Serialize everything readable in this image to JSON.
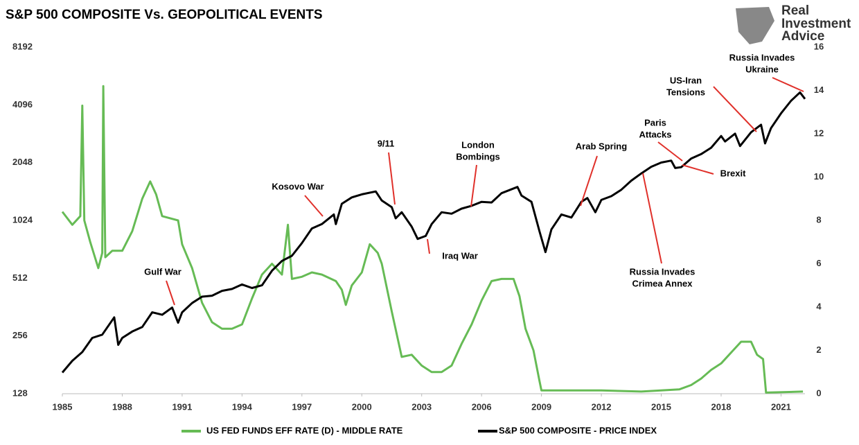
{
  "chart_data": {
    "type": "line",
    "title": "S&P 500 COMPOSITE Vs. GEOPOLITICAL EVENTS",
    "logo": [
      "Real",
      "Investment",
      "Advice"
    ],
    "xlim": [
      1985,
      2022.2
    ],
    "xticks": [
      1985,
      1988,
      1991,
      1994,
      1997,
      2000,
      2003,
      2006,
      2009,
      2012,
      2015,
      2018,
      2021
    ],
    "ylim": [
      128,
      8192
    ],
    "yticks": [
      128,
      256,
      512,
      1024,
      2048,
      4096,
      8192
    ],
    "yscale": "log",
    "y2lim": [
      0,
      16
    ],
    "y2ticks": [
      0,
      2,
      4,
      6,
      8,
      10,
      12,
      14,
      16
    ],
    "legend": "bottom",
    "series": [
      {
        "name": "US FED FUNDS EFF RATE (D) - MIDDLE RATE",
        "color": "#66bb55",
        "axis": "y2",
        "x": [
          1985.0,
          1985.5,
          1985.9,
          1986.0,
          1986.1,
          1986.4,
          1986.8,
          1987.0,
          1987.05,
          1987.15,
          1987.5,
          1988.0,
          1988.5,
          1989.0,
          1989.4,
          1989.7,
          1990.0,
          1990.8,
          1991.0,
          1991.5,
          1992.0,
          1992.5,
          1993.0,
          1993.5,
          1994.0,
          1994.5,
          1995.0,
          1995.5,
          1996.0,
          1996.3,
          1996.5,
          1997.0,
          1997.5,
          1998.0,
          1998.7,
          1999.0,
          1999.2,
          1999.5,
          2000.0,
          2000.4,
          2000.8,
          2001.0,
          2001.5,
          2002.0,
          2002.5,
          2003.0,
          2003.5,
          2004.0,
          2004.5,
          2005.0,
          2005.5,
          2006.0,
          2006.5,
          2007.0,
          2007.6,
          2007.9,
          2008.2,
          2008.6,
          2008.9,
          2009.0,
          2010.0,
          2012.0,
          2014.0,
          2015.9,
          2016.5,
          2017.0,
          2017.5,
          2018.0,
          2018.5,
          2019.0,
          2019.5,
          2019.8,
          2020.1,
          2020.25,
          2022.1
        ],
        "values": [
          8.4,
          7.8,
          8.2,
          13.3,
          8.0,
          7.0,
          5.8,
          6.5,
          14.2,
          6.3,
          6.6,
          6.6,
          7.5,
          9.0,
          9.8,
          9.2,
          8.2,
          8.0,
          6.9,
          5.8,
          4.2,
          3.3,
          3.0,
          3.0,
          3.2,
          4.4,
          5.5,
          6.0,
          5.5,
          7.8,
          5.3,
          5.4,
          5.6,
          5.5,
          5.2,
          4.8,
          4.1,
          5.0,
          5.6,
          6.9,
          6.5,
          6.0,
          3.8,
          1.7,
          1.8,
          1.3,
          1.0,
          1.0,
          1.3,
          2.3,
          3.2,
          4.3,
          5.2,
          5.3,
          5.3,
          4.5,
          3.0,
          2.0,
          0.6,
          0.15,
          0.15,
          0.15,
          0.1,
          0.2,
          0.4,
          0.7,
          1.1,
          1.4,
          1.9,
          2.4,
          2.4,
          1.8,
          1.6,
          0.05,
          0.1
        ]
      },
      {
        "name": "S&P 500 COMPOSITE - PRICE INDEX",
        "color": "#000000",
        "x": [
          1985.0,
          1985.5,
          1986.0,
          1986.5,
          1987.0,
          1987.6,
          1987.8,
          1988.0,
          1988.5,
          1989.0,
          1989.5,
          1990.0,
          1990.5,
          1990.8,
          1991.0,
          1991.5,
          1992.0,
          1992.5,
          1993.0,
          1993.5,
          1994.0,
          1994.5,
          1995.0,
          1995.5,
          1996.0,
          1996.5,
          1997.0,
          1997.5,
          1998.0,
          1998.6,
          1998.7,
          1999.0,
          1999.5,
          2000.0,
          2000.7,
          2001.0,
          2001.5,
          2001.7,
          2002.0,
          2002.5,
          2002.8,
          2003.2,
          2003.5,
          2004.0,
          2004.5,
          2005.0,
          2005.5,
          2006.0,
          2006.5,
          2007.0,
          2007.8,
          2008.0,
          2008.5,
          2008.9,
          2009.2,
          2009.5,
          2010.0,
          2010.5,
          2011.0,
          2011.3,
          2011.7,
          2012.0,
          2012.5,
          2013.0,
          2013.5,
          2014.0,
          2014.5,
          2015.0,
          2015.5,
          2015.7,
          2016.0,
          2016.5,
          2017.0,
          2017.5,
          2018.0,
          2018.2,
          2018.7,
          2018.95,
          2019.5,
          2020.0,
          2020.2,
          2020.5,
          2021.0,
          2021.5,
          2021.95,
          2022.2
        ],
        "values": [
          165,
          190,
          211,
          250,
          260,
          320,
          230,
          250,
          270,
          285,
          340,
          330,
          360,
          300,
          340,
          380,
          410,
          415,
          440,
          450,
          475,
          455,
          470,
          560,
          630,
          670,
          780,
          930,
          980,
          1100,
          980,
          1250,
          1350,
          1400,
          1450,
          1300,
          1200,
          1050,
          1130,
          950,
          820,
          850,
          980,
          1130,
          1110,
          1180,
          1220,
          1280,
          1270,
          1420,
          1530,
          1380,
          1280,
          900,
          700,
          920,
          1100,
          1060,
          1280,
          1340,
          1130,
          1310,
          1370,
          1480,
          1650,
          1800,
          1950,
          2050,
          2100,
          1920,
          1940,
          2150,
          2270,
          2450,
          2820,
          2640,
          2900,
          2500,
          2950,
          3230,
          2580,
          3100,
          3700,
          4300,
          4760,
          4400
        ]
      }
    ],
    "annotations": [
      {
        "lines": [
          "Gulf War"
        ]
      },
      {
        "lines": [
          "Kosovo War"
        ]
      },
      {
        "lines": [
          "9/11"
        ]
      },
      {
        "lines": [
          "London",
          "Bombings"
        ]
      },
      {
        "lines": [
          "Iraq War"
        ]
      },
      {
        "lines": [
          "Arab Spring"
        ]
      },
      {
        "lines": [
          "Paris",
          "Attacks"
        ]
      },
      {
        "lines": [
          "Brexit"
        ]
      },
      {
        "lines": [
          "Russia Invades",
          "Crimea Annex"
        ]
      },
      {
        "lines": [
          "US-Iran",
          "Tensions"
        ]
      },
      {
        "lines": [
          "Russia Invades",
          "Ukraine"
        ]
      }
    ]
  }
}
